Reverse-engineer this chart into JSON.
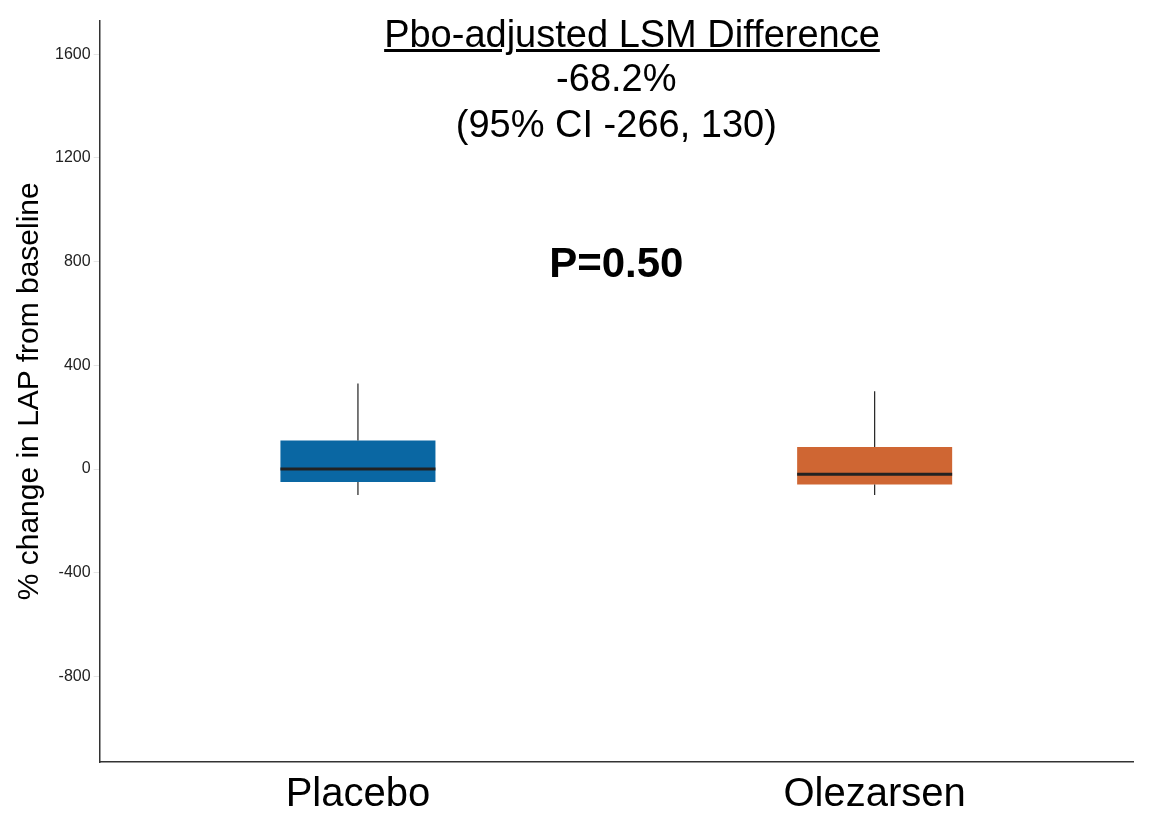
{
  "chart_data": {
    "type": "box",
    "title": "Pbo-adjusted LSM Difference",
    "annotations": [
      "-68.2%",
      "(95% CI -266, 130)",
      "P=0.50"
    ],
    "ylabel": "% change in LAP from baseline",
    "categories": [
      "Placebo",
      "Olezarsen"
    ],
    "colors": [
      "#0a67a3",
      "#cf6633"
    ],
    "boxes": [
      {
        "low": -100,
        "q1": -50,
        "median": 0,
        "q3": 110,
        "high": 330
      },
      {
        "low": -100,
        "q1": -60,
        "median": -20,
        "q3": 85,
        "high": 300
      }
    ],
    "ylim": [
      -1130,
      1730
    ],
    "yticks": [
      -800,
      -400,
      0,
      400,
      800,
      1200,
      1600
    ],
    "grid": false,
    "legend": false
  }
}
